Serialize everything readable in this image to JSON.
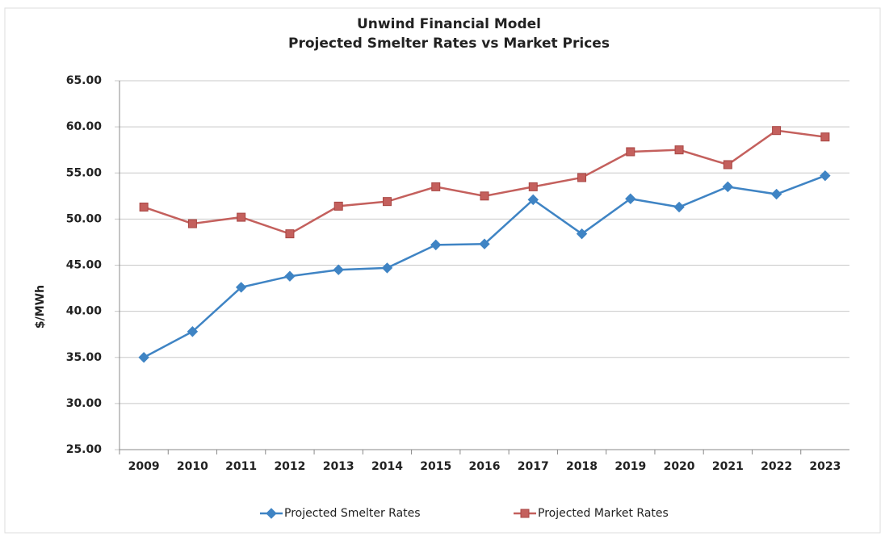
{
  "chart_data": {
    "type": "line",
    "title": "Unwind Financial Model",
    "subtitle": "Projected Smelter Rates vs Market Prices",
    "y_label": "$/MWh",
    "categories": [
      "2009",
      "2010",
      "2011",
      "2012",
      "2013",
      "2014",
      "2015",
      "2016",
      "2017",
      "2018",
      "2019",
      "2020",
      "2021",
      "2022",
      "2023"
    ],
    "series": [
      {
        "name": "Projected Smelter Rates",
        "color": "#3f84c4",
        "marker": "diamond",
        "values": [
          35.0,
          37.8,
          42.6,
          43.8,
          44.5,
          44.7,
          47.2,
          47.3,
          52.1,
          48.4,
          52.2,
          51.3,
          53.5,
          52.7,
          54.7
        ]
      },
      {
        "name": "Projected Market Rates",
        "color": "#c4605d",
        "marker": "square",
        "values": [
          51.3,
          49.5,
          50.2,
          48.4,
          51.4,
          51.9,
          53.5,
          52.5,
          53.5,
          54.5,
          57.3,
          57.5,
          55.9,
          59.6,
          58.9
        ]
      }
    ],
    "ylim": [
      25,
      65
    ],
    "yticks": [
      {
        "value": 25,
        "label": "25.00"
      },
      {
        "value": 30,
        "label": "30.00"
      },
      {
        "value": 35,
        "label": "35.00"
      },
      {
        "value": 40,
        "label": "40.00"
      },
      {
        "value": 45,
        "label": "45.00"
      },
      {
        "value": 50,
        "label": "50.00"
      },
      {
        "value": 55,
        "label": "55.00"
      },
      {
        "value": 60,
        "label": "60.00"
      },
      {
        "value": 65,
        "label": "65.00"
      }
    ],
    "grid": true,
    "legend": "bottom"
  }
}
